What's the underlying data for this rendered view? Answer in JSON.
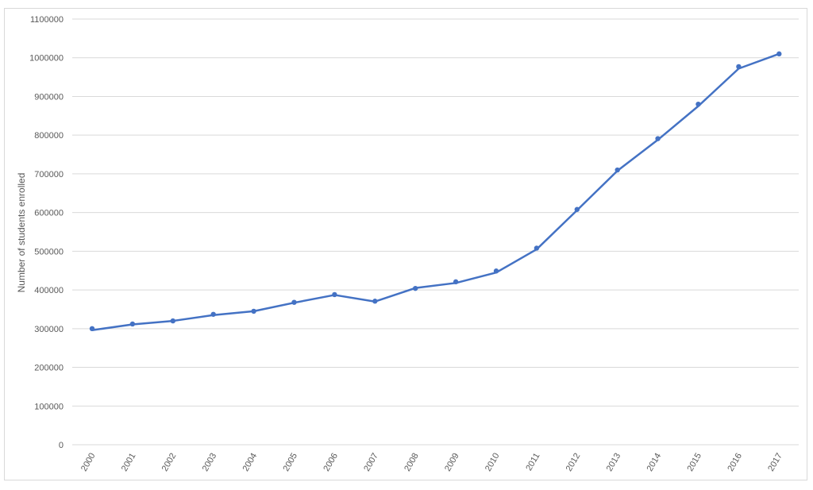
{
  "chart_data": {
    "type": "line",
    "title": "",
    "xlabel": "",
    "ylabel": "Number of students enrolled",
    "x": [
      "2000",
      "2001",
      "2002",
      "2003",
      "2004",
      "2005",
      "2006",
      "2007",
      "2008",
      "2009",
      "2010",
      "2011",
      "2012",
      "2013",
      "2014",
      "2015",
      "2016",
      "2017"
    ],
    "series": [
      {
        "values": [
          300000,
          312000,
          320000,
          337000,
          345000,
          368000,
          388000,
          371000,
          404000,
          421000,
          449000,
          508000,
          608000,
          710000,
          791000,
          880000,
          977000,
          1010000
        ],
        "line_values": [
          296000,
          311000,
          320000,
          335000,
          345000,
          367000,
          387000,
          370000,
          405000,
          418000,
          445000,
          505000,
          606000,
          708000,
          788000,
          875000,
          972000,
          1010000
        ],
        "color": "#4472c4"
      }
    ],
    "ylim": [
      0,
      1100000
    ],
    "yticks": [
      "0",
      "100000",
      "200000",
      "300000",
      "400000",
      "500000",
      "600000",
      "700000",
      "800000",
      "900000",
      "1000000",
      "1100000"
    ],
    "grid": true,
    "legend": "none"
  }
}
